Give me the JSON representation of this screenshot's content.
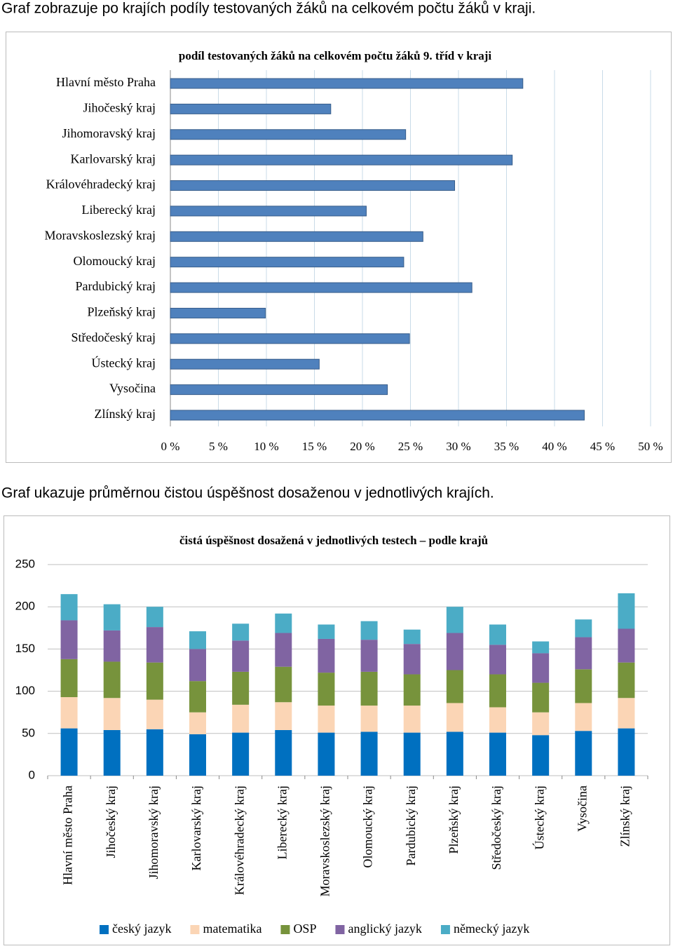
{
  "captions": [
    "Graf zobrazuje po krajích podíly testovaných žáků na celkovém počtu žáků v kraji.",
    "Graf ukazuje průměrnou čistou úspěšnost dosaženou v jednotlivých krajích."
  ],
  "chart_data": [
    {
      "type": "bar",
      "orientation": "horizontal",
      "title": "podíl testovaných žáků na celkovém počtu žáků 9. tříd v kraji",
      "categories": [
        "Hlavní město Praha",
        "Jihočeský kraj",
        "Jihomoravský kraj",
        "Karlovarský kraj",
        "Královéhradecký kraj",
        "Liberecký kraj",
        "Moravskoslezský kraj",
        "Olomoucký kraj",
        "Pardubický kraj",
        "Plzeňský kraj",
        "Středočeský kraj",
        "Ústecký kraj",
        "Vysočina",
        "Zlínský kraj"
      ],
      "values": [
        36.7,
        16.7,
        24.5,
        35.6,
        29.6,
        20.4,
        26.3,
        24.3,
        31.4,
        9.9,
        24.9,
        15.5,
        22.6,
        43.1
      ],
      "color": "#4f81bd",
      "xlim": [
        0,
        50
      ],
      "xticks": [
        {
          "value": 0,
          "label": "0 %"
        },
        {
          "value": 5,
          "label": "5 %"
        },
        {
          "value": 10,
          "label": "10 %"
        },
        {
          "value": 15,
          "label": "15 %"
        },
        {
          "value": 20,
          "label": "20 %"
        },
        {
          "value": 25,
          "label": "25 %"
        },
        {
          "value": 30,
          "label": "30 %"
        },
        {
          "value": 35,
          "label": "35 %"
        },
        {
          "value": 40,
          "label": "40 %"
        },
        {
          "value": 45,
          "label": "45 %"
        },
        {
          "value": 50,
          "label": "50 %"
        }
      ],
      "grid": true
    },
    {
      "type": "stacked_bar",
      "title": "čistá úspěšnost dosažená v jednotlivých testech – podle krajů",
      "categories": [
        "Hlavní město Praha",
        "Jihočeský kraj",
        "Jihomoravský kraj",
        "Karlovarský kraj",
        "Královéhradecký kraj",
        "Liberecký kraj",
        "Moravskoslezský kraj",
        "Olomoucký kraj",
        "Pardubický kraj",
        "Plzeňský kraj",
        "Středočeský kraj",
        "Ústecký kraj",
        "Vysočina",
        "Zlínský kraj"
      ],
      "series": [
        {
          "name": "český jazyk",
          "color": "#0070c0",
          "values": [
            56,
            54,
            55,
            49,
            51,
            54,
            51,
            52,
            51,
            52,
            51,
            48,
            53,
            56
          ]
        },
        {
          "name": "matematika",
          "color": "#fbd5b5",
          "values": [
            37,
            38,
            35,
            26,
            33,
            33,
            32,
            31,
            32,
            34,
            30,
            27,
            33,
            36
          ]
        },
        {
          "name": "OSP",
          "color": "#77933c",
          "values": [
            45,
            43,
            44,
            37,
            39,
            42,
            39,
            40,
            37,
            39,
            39,
            35,
            40,
            42
          ]
        },
        {
          "name": "anglický jazyk",
          "color": "#8064a2",
          "values": [
            46,
            37,
            42,
            38,
            37,
            40,
            40,
            38,
            36,
            44,
            35,
            35,
            38,
            40
          ]
        },
        {
          "name": "německý jazyk",
          "color": "#4bacc6",
          "values": [
            31,
            31,
            24,
            21,
            20,
            23,
            17,
            22,
            17,
            31,
            24,
            14,
            21,
            42
          ]
        }
      ],
      "ylim": [
        0,
        250
      ],
      "yticks": [
        0,
        50,
        100,
        150,
        200,
        250
      ],
      "grid": true,
      "legend": "bottom"
    }
  ]
}
